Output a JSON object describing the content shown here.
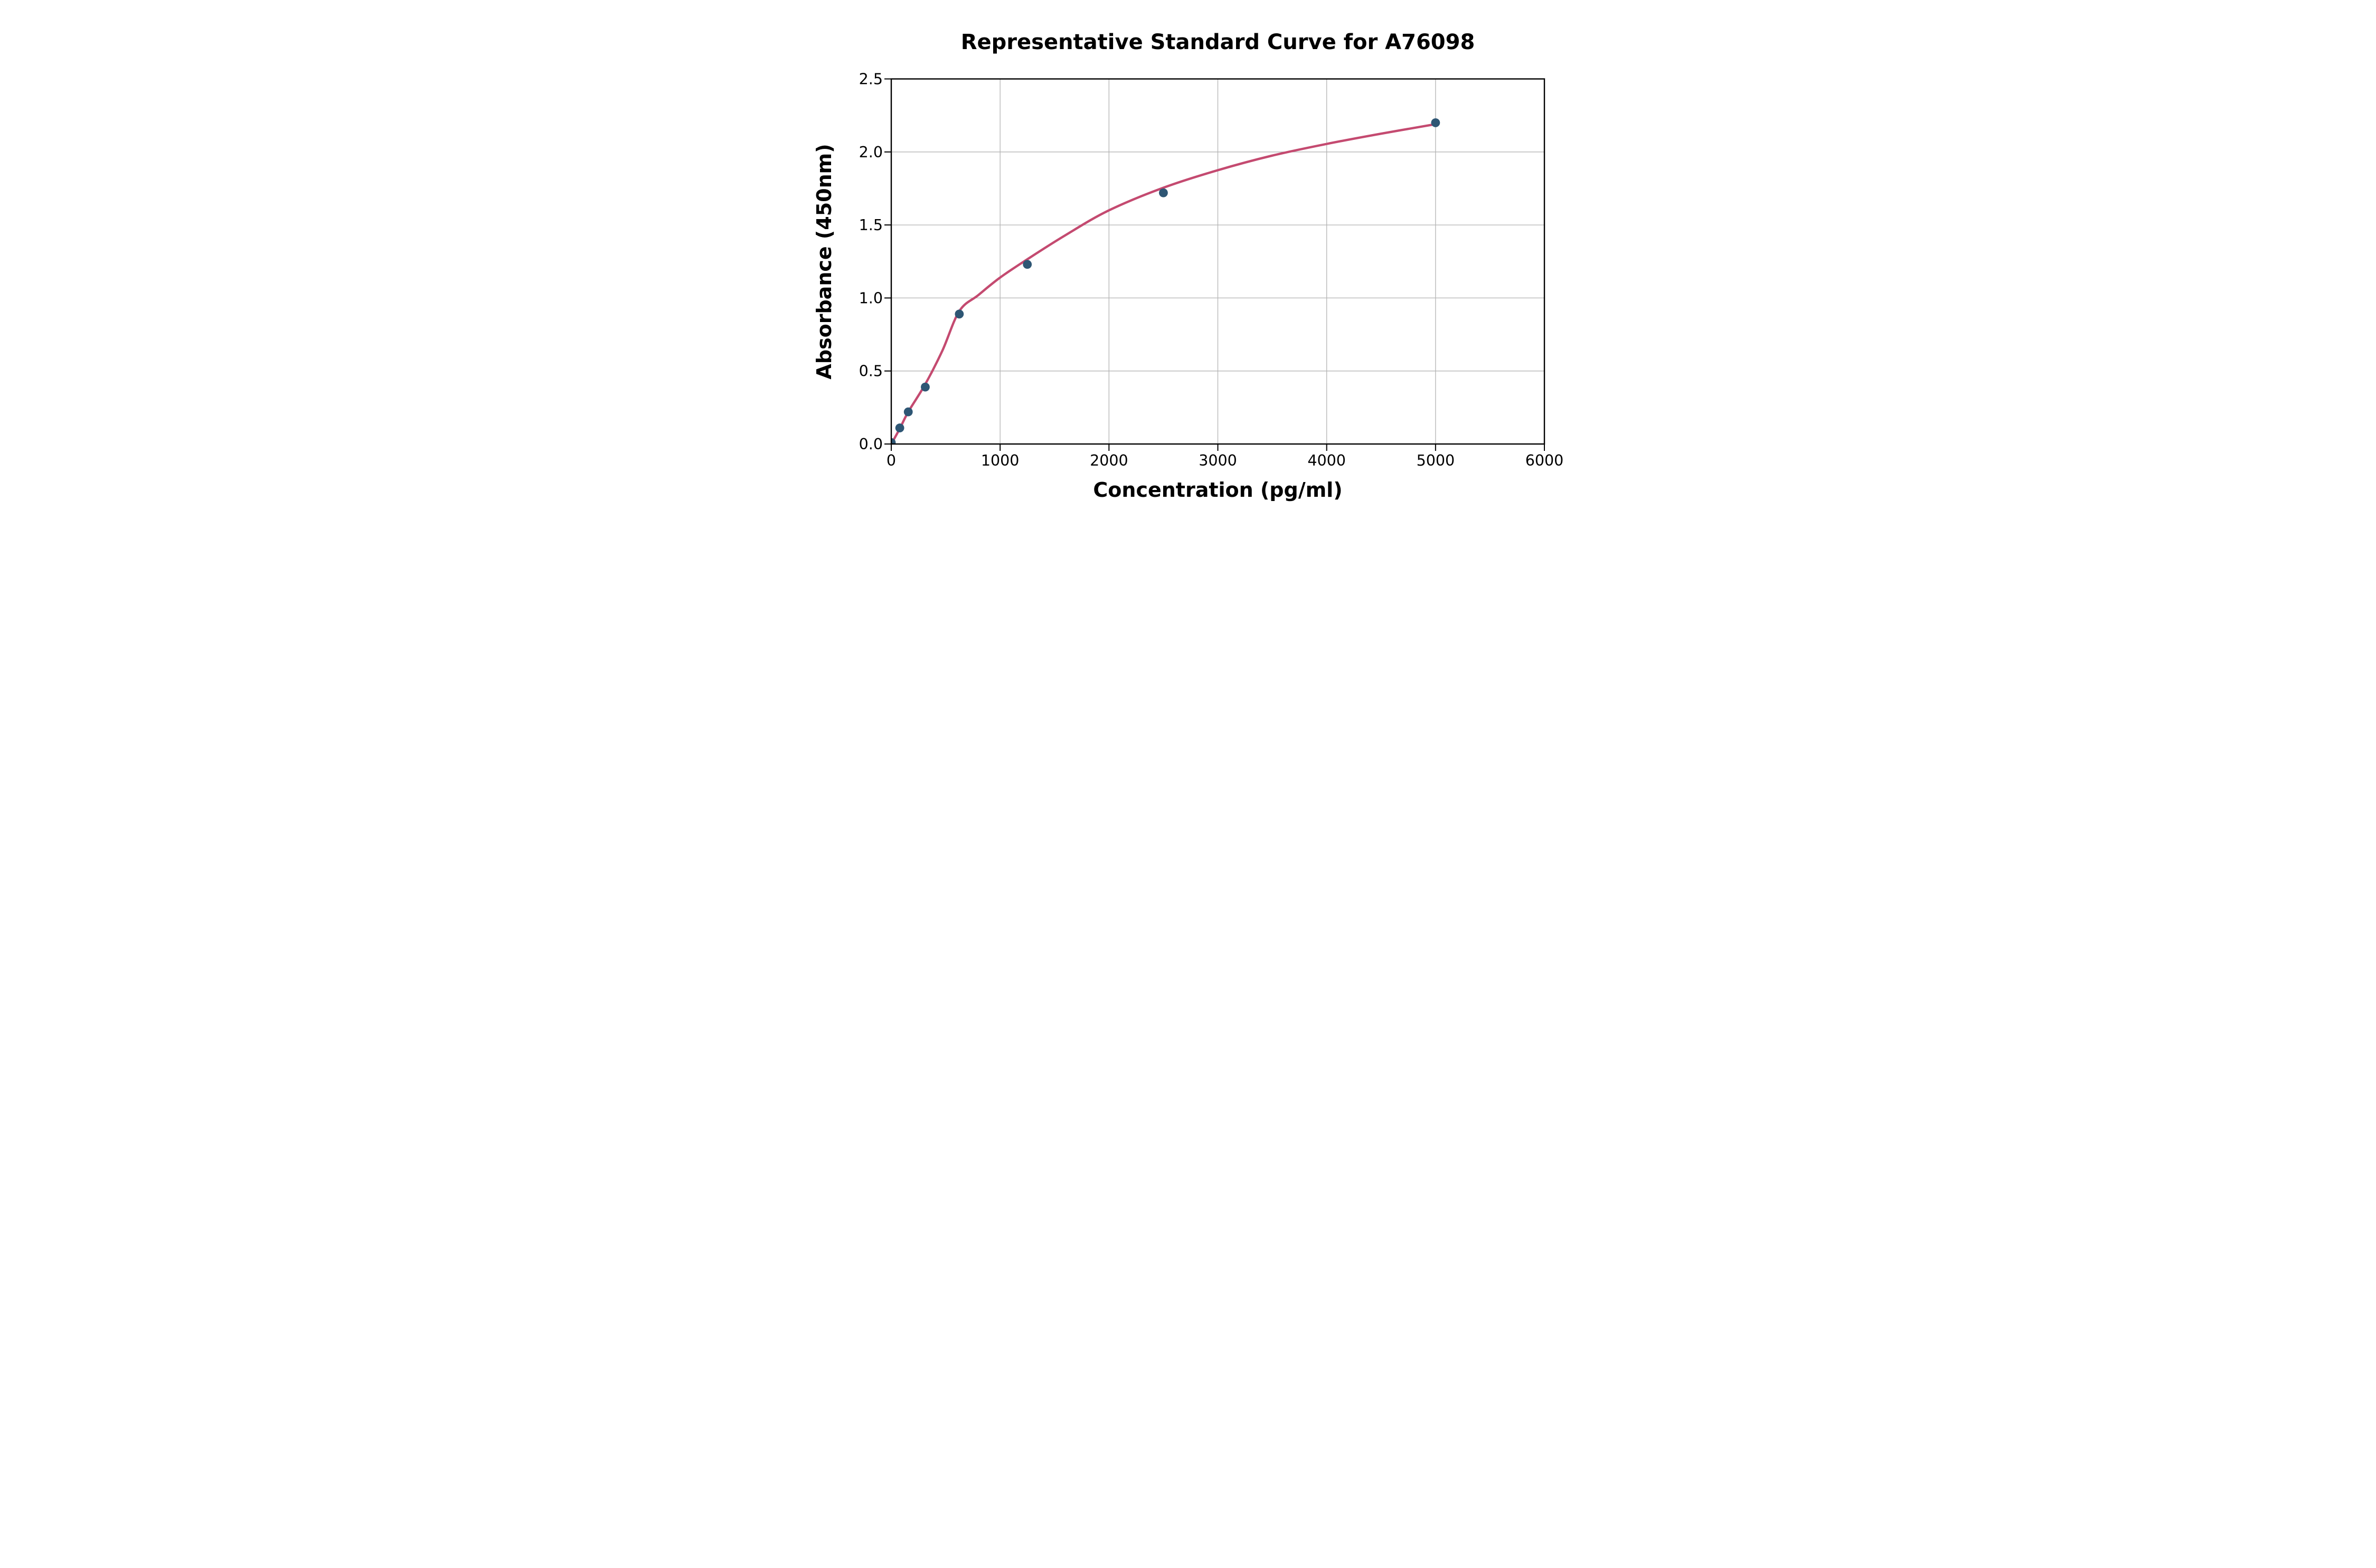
{
  "figure": {
    "title": "Representative Standard Curve for A76098",
    "x_axis_label": "Concentration (pg/ml)",
    "y_axis_label": "Absorbance (450nm)"
  },
  "chart_data": {
    "type": "scatter",
    "title": "Representative Standard Curve for A76098",
    "xlabel": "Concentration (pg/ml)",
    "ylabel": "Absorbance (450nm)",
    "xlim": [
      0,
      6000
    ],
    "ylim": [
      0.0,
      2.5
    ],
    "x_ticks": [
      0,
      1000,
      2000,
      3000,
      4000,
      5000,
      6000
    ],
    "x_tick_labels": [
      "0",
      "1000",
      "2000",
      "3000",
      "4000",
      "5000",
      "6000"
    ],
    "y_ticks": [
      0.0,
      0.5,
      1.0,
      1.5,
      2.0,
      2.5
    ],
    "y_tick_labels": [
      "0.0",
      "0.5",
      "1.0",
      "1.5",
      "2.0",
      "2.5"
    ],
    "grid": true,
    "legend_position": "none",
    "colors": {
      "marker": "#2e5674",
      "curve": "#c44a70",
      "gridline": "#b4b4b4",
      "axis": "#000000",
      "background": "#ffffff"
    },
    "series": [
      {
        "name": "standard-data-points",
        "type": "scatter",
        "points": [
          {
            "x": 0,
            "y": 0.01
          },
          {
            "x": 78.13,
            "y": 0.11
          },
          {
            "x": 156.25,
            "y": 0.22
          },
          {
            "x": 312.5,
            "y": 0.39
          },
          {
            "x": 625,
            "y": 0.89
          },
          {
            "x": 1250,
            "y": 1.23
          },
          {
            "x": 2500,
            "y": 1.72
          },
          {
            "x": 5000,
            "y": 2.2
          }
        ]
      },
      {
        "name": "fitted-standard-curve",
        "type": "line",
        "samples": [
          [
            0,
            0.0
          ],
          [
            78,
            0.105
          ],
          [
            156,
            0.22
          ],
          [
            313,
            0.41
          ],
          [
            470,
            0.64
          ],
          [
            625,
            0.91
          ],
          [
            800,
            1.02
          ],
          [
            1000,
            1.14
          ],
          [
            1250,
            1.265
          ],
          [
            1600,
            1.43
          ],
          [
            2000,
            1.6
          ],
          [
            2500,
            1.755
          ],
          [
            3000,
            1.875
          ],
          [
            3500,
            1.975
          ],
          [
            4000,
            2.055
          ],
          [
            4500,
            2.125
          ],
          [
            5000,
            2.19
          ]
        ]
      }
    ]
  }
}
